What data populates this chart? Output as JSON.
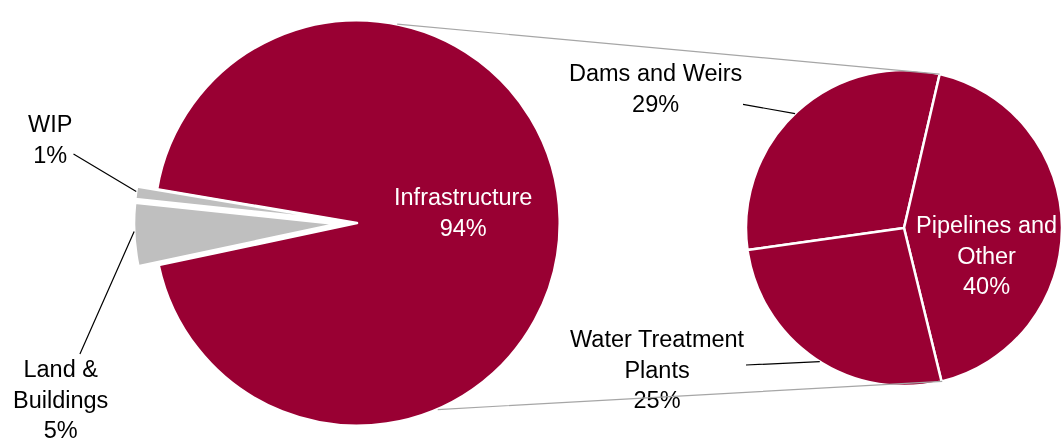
{
  "chart_data": [
    {
      "type": "pie",
      "categories": [
        "Infrastructure",
        "Land & Buildings",
        "WIP"
      ],
      "values": [
        94,
        5,
        1
      ],
      "value_labels": [
        "94%",
        "5%",
        "1%"
      ],
      "colors": [
        "#990033",
        "#bfbfbf",
        "#bfbfbf"
      ]
    },
    {
      "type": "pie",
      "categories": [
        "Dams and Weirs",
        "Pipelines and Other",
        "Water Treatment Plants"
      ],
      "values": [
        29,
        40,
        25
      ],
      "value_labels": [
        "29%",
        "40%",
        "25%"
      ],
      "colors": [
        "#990033",
        "#990033",
        "#990033"
      ]
    }
  ]
}
